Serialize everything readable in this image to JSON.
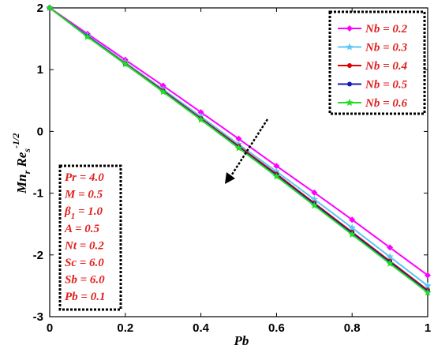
{
  "chart_data": {
    "type": "line",
    "xlabel": "Pb",
    "ylabel": {
      "main": "Mn",
      "sub_r": "r",
      "re": "Re",
      "sub_s": "s",
      "sup": "-1/2"
    },
    "xlim": [
      0,
      1
    ],
    "ylim": [
      -3,
      2
    ],
    "xticks": [
      "0",
      "0.2",
      "0.4",
      "0.6",
      "0.8",
      "1"
    ],
    "yticks": [
      "2",
      "1",
      "0",
      "-1",
      "-2",
      "-3"
    ],
    "x": [
      0,
      0.1,
      0.2,
      0.3,
      0.4,
      0.5,
      0.6,
      0.7,
      0.8,
      0.9,
      1.0
    ],
    "legend_position": "top-right",
    "series": [
      {
        "name": "Nb = 0.2",
        "color": "#ff00ff",
        "marker": "diamond",
        "values": [
          2.0,
          1.58,
          1.16,
          0.74,
          0.31,
          -0.12,
          -0.56,
          -0.99,
          -1.43,
          -1.88,
          -2.33
        ]
      },
      {
        "name": "Nb = 0.3",
        "color": "#5bc8f5",
        "marker": "star",
        "values": [
          2.0,
          1.55,
          1.12,
          0.68,
          0.24,
          -0.21,
          -0.65,
          -1.1,
          -1.56,
          -2.03,
          -2.5
        ]
      },
      {
        "name": "Nb = 0.4",
        "color": "#e00000",
        "marker": "dot",
        "values": [
          2.0,
          1.54,
          1.1,
          0.66,
          0.21,
          -0.24,
          -0.69,
          -1.16,
          -1.63,
          -2.1,
          -2.57
        ]
      },
      {
        "name": "Nb = 0.5",
        "color": "#1a1ab0",
        "marker": "dot",
        "values": [
          2.0,
          1.54,
          1.09,
          0.65,
          0.2,
          -0.26,
          -0.71,
          -1.18,
          -1.65,
          -2.12,
          -2.59
        ]
      },
      {
        "name": "Nb = 0.6",
        "color": "#22dd22",
        "marker": "star",
        "values": [
          2.0,
          1.53,
          1.09,
          0.64,
          0.19,
          -0.27,
          -0.73,
          -1.2,
          -1.67,
          -2.14,
          -2.61
        ]
      }
    ],
    "parameters": [
      {
        "name": "Pr",
        "sub": "",
        "value": "= 4.0"
      },
      {
        "name": "M",
        "sub": "",
        "value": "= 0.5"
      },
      {
        "name": "β",
        "sub": "1",
        "value": "= 1.0"
      },
      {
        "name": "A",
        "sub": "",
        "value": "= 0.5"
      },
      {
        "name": "Nt",
        "sub": "",
        "value": "= 0.2"
      },
      {
        "name": "Sc",
        "sub": "",
        "value": "= 6.0"
      },
      {
        "name": "Sb",
        "sub": "",
        "value": "= 6.0"
      },
      {
        "name": "Pb",
        "sub": "",
        "value": "= 0.1"
      }
    ]
  }
}
